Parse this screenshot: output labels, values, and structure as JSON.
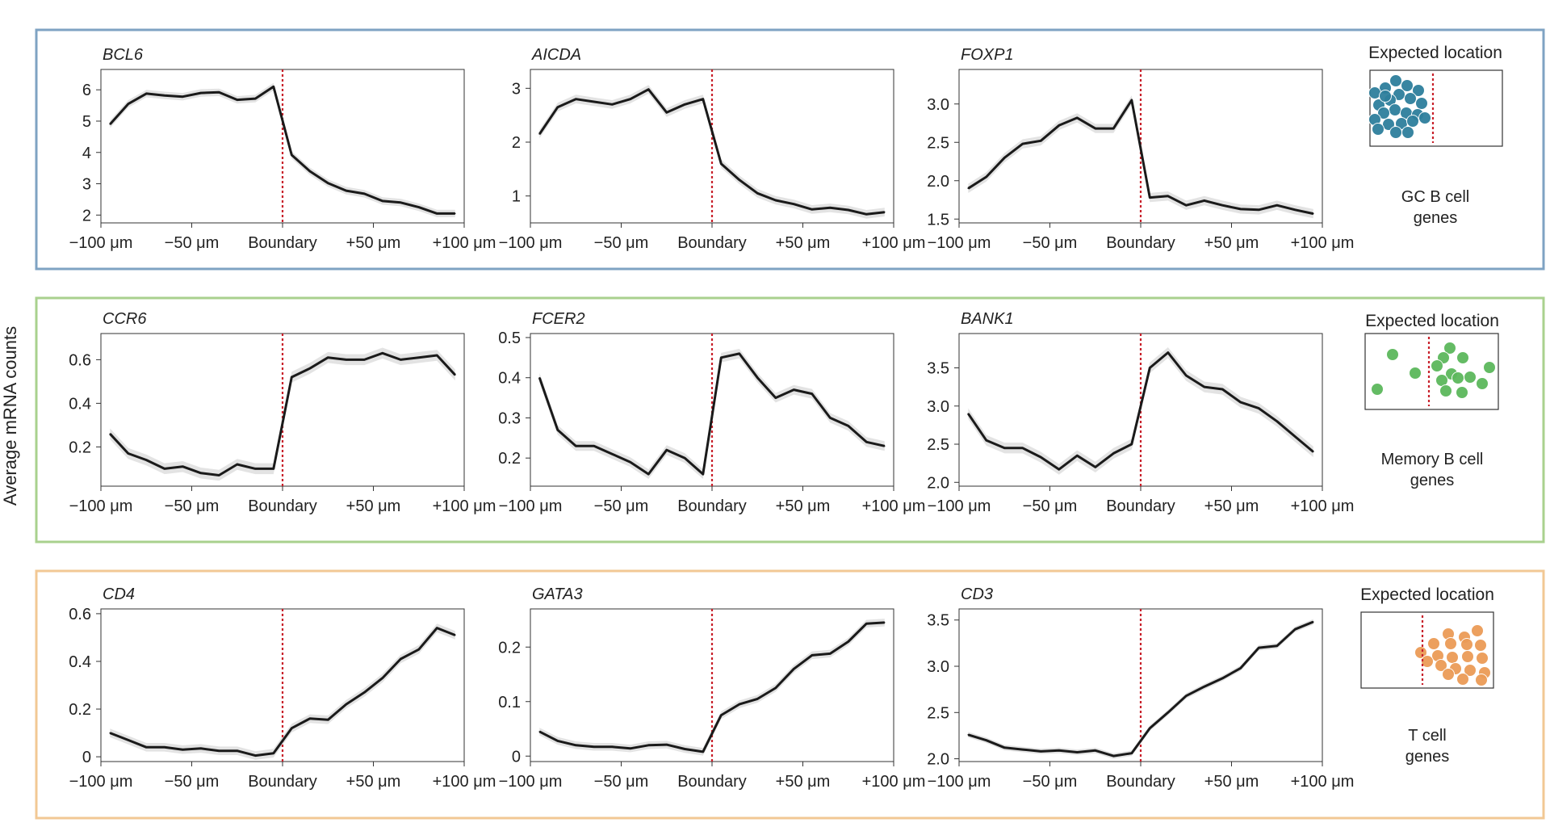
{
  "figure": {
    "ylabel": "Average mRNA counts",
    "x_tick_labels": [
      "−100 μm",
      "−50 μm",
      "Boundary",
      "+50 μm",
      "+100 μm"
    ],
    "legend_title": "Expected location",
    "row_colors": [
      "#7fa3c3",
      "#a9d18e",
      "#f2c894"
    ],
    "dot_colors": [
      "#2e7f9c",
      "#5cb85c",
      "#eb9b57"
    ],
    "rows": [
      {
        "caption_line1": "GC B cell",
        "caption_line2": "genes"
      },
      {
        "caption_line1": "Memory B cell",
        "caption_line2": "genes"
      },
      {
        "caption_line1": "T cell",
        "caption_line2": "genes"
      }
    ]
  },
  "chart_data": [
    {
      "type": "line",
      "title": "BCL6",
      "row": 0,
      "col": 0,
      "x": [
        -95,
        -85,
        -75,
        -65,
        -55,
        -45,
        -35,
        -25,
        -15,
        -5,
        5,
        15,
        25,
        35,
        45,
        55,
        65,
        75,
        85,
        95
      ],
      "values": [
        4.9,
        5.55,
        5.88,
        5.82,
        5.78,
        5.9,
        5.92,
        5.68,
        5.72,
        6.1,
        3.92,
        3.4,
        3.02,
        2.78,
        2.68,
        2.45,
        2.4,
        2.25,
        2.05,
        2.05
      ],
      "band": 0.12,
      "yticks": [
        2,
        3,
        4,
        5,
        6
      ],
      "ytick_labels": [
        "2",
        "3",
        "4",
        "5",
        "6"
      ],
      "ylim": [
        1.75,
        6.65
      ],
      "xlim": [
        -100,
        100
      ],
      "boundary_x": 0
    },
    {
      "type": "line",
      "title": "AICDA",
      "row": 0,
      "col": 1,
      "x": [
        -95,
        -85,
        -75,
        -65,
        -55,
        -45,
        -35,
        -25,
        -15,
        -5,
        5,
        15,
        25,
        35,
        45,
        55,
        65,
        75,
        85,
        95
      ],
      "values": [
        2.15,
        2.65,
        2.8,
        2.75,
        2.7,
        2.8,
        2.98,
        2.55,
        2.7,
        2.8,
        1.6,
        1.3,
        1.05,
        0.92,
        0.85,
        0.75,
        0.78,
        0.74,
        0.66,
        0.7
      ],
      "band": 0.08,
      "yticks": [
        1,
        2,
        3
      ],
      "ytick_labels": [
        "1",
        "2",
        "3"
      ],
      "ylim": [
        0.5,
        3.35
      ],
      "xlim": [
        -100,
        100
      ],
      "boundary_x": 0
    },
    {
      "type": "line",
      "title": "FOXP1",
      "row": 0,
      "col": 2,
      "x": [
        -95,
        -85,
        -75,
        -65,
        -55,
        -45,
        -35,
        -25,
        -15,
        -5,
        5,
        15,
        25,
        35,
        45,
        55,
        65,
        75,
        85,
        95
      ],
      "values": [
        1.9,
        2.05,
        2.3,
        2.48,
        2.52,
        2.72,
        2.82,
        2.68,
        2.68,
        3.05,
        1.78,
        1.8,
        1.68,
        1.74,
        1.68,
        1.63,
        1.62,
        1.68,
        1.62,
        1.57
      ],
      "band": 0.06,
      "yticks": [
        1.5,
        2.0,
        2.5,
        3.0
      ],
      "ytick_labels": [
        "1.5",
        "2.0",
        "2.5",
        "3.0"
      ],
      "ylim": [
        1.45,
        3.45
      ],
      "xlim": [
        -100,
        100
      ],
      "boundary_x": 0
    },
    {
      "type": "line",
      "title": "CCR6",
      "row": 1,
      "col": 0,
      "x": [
        -95,
        -85,
        -75,
        -65,
        -55,
        -45,
        -35,
        -25,
        -15,
        -5,
        5,
        15,
        25,
        35,
        45,
        55,
        65,
        75,
        85,
        95
      ],
      "values": [
        0.26,
        0.17,
        0.14,
        0.1,
        0.11,
        0.08,
        0.07,
        0.12,
        0.1,
        0.1,
        0.52,
        0.56,
        0.61,
        0.6,
        0.6,
        0.63,
        0.6,
        0.61,
        0.62,
        0.53
      ],
      "band": 0.025,
      "yticks": [
        0.2,
        0.4,
        0.6
      ],
      "ytick_labels": [
        "0.2",
        "0.4",
        "0.6"
      ],
      "ylim": [
        0.02,
        0.72
      ],
      "xlim": [
        -100,
        100
      ],
      "boundary_x": 0
    },
    {
      "type": "line",
      "title": "FCER2",
      "row": 1,
      "col": 1,
      "x": [
        -95,
        -85,
        -75,
        -65,
        -55,
        -45,
        -35,
        -25,
        -15,
        -5,
        5,
        15,
        25,
        35,
        45,
        55,
        65,
        75,
        85,
        95
      ],
      "values": [
        0.4,
        0.27,
        0.23,
        0.23,
        0.21,
        0.19,
        0.16,
        0.22,
        0.2,
        0.16,
        0.45,
        0.46,
        0.4,
        0.35,
        0.37,
        0.36,
        0.3,
        0.28,
        0.24,
        0.23
      ],
      "band": 0.012,
      "yticks": [
        0.2,
        0.3,
        0.4,
        0.5
      ],
      "ytick_labels": [
        "0.2",
        "0.3",
        "0.4",
        "0.5"
      ],
      "ylim": [
        0.13,
        0.51
      ],
      "xlim": [
        -100,
        100
      ],
      "boundary_x": 0
    },
    {
      "type": "line",
      "title": "BANK1",
      "row": 1,
      "col": 2,
      "x": [
        -95,
        -85,
        -75,
        -65,
        -55,
        -45,
        -35,
        -25,
        -15,
        -5,
        5,
        15,
        25,
        35,
        45,
        55,
        65,
        75,
        85,
        95
      ],
      "values": [
        2.9,
        2.55,
        2.45,
        2.45,
        2.33,
        2.17,
        2.35,
        2.2,
        2.38,
        2.5,
        3.5,
        3.7,
        3.4,
        3.25,
        3.22,
        3.05,
        2.97,
        2.8,
        2.6,
        2.4
      ],
      "band": 0.07,
      "yticks": [
        2.0,
        2.5,
        3.0,
        3.5
      ],
      "ytick_labels": [
        "2.0",
        "2.5",
        "3.0",
        "3.5"
      ],
      "ylim": [
        1.95,
        3.95
      ],
      "xlim": [
        -100,
        100
      ],
      "boundary_x": 0
    },
    {
      "type": "line",
      "title": "CD4",
      "row": 2,
      "col": 0,
      "x": [
        -95,
        -85,
        -75,
        -65,
        -55,
        -45,
        -35,
        -25,
        -15,
        -5,
        5,
        15,
        25,
        35,
        45,
        55,
        65,
        75,
        85,
        95
      ],
      "values": [
        0.1,
        0.07,
        0.04,
        0.04,
        0.03,
        0.035,
        0.025,
        0.025,
        0.005,
        0.015,
        0.12,
        0.16,
        0.155,
        0.22,
        0.27,
        0.33,
        0.41,
        0.45,
        0.54,
        0.51
      ],
      "band": 0.018,
      "yticks": [
        0,
        0.2,
        0.4,
        0.6
      ],
      "ytick_labels": [
        "0",
        "0.2",
        "0.4",
        "0.6"
      ],
      "ylim": [
        -0.02,
        0.62
      ],
      "xlim": [
        -100,
        100
      ],
      "boundary_x": 0
    },
    {
      "type": "line",
      "title": "GATA3",
      "row": 2,
      "col": 1,
      "x": [
        -95,
        -85,
        -75,
        -65,
        -55,
        -45,
        -35,
        -25,
        -15,
        -5,
        5,
        15,
        25,
        35,
        45,
        55,
        65,
        75,
        85,
        95
      ],
      "values": [
        0.045,
        0.028,
        0.02,
        0.017,
        0.017,
        0.014,
        0.02,
        0.021,
        0.013,
        0.008,
        0.075,
        0.095,
        0.105,
        0.125,
        0.16,
        0.185,
        0.188,
        0.21,
        0.243,
        0.245
      ],
      "band": 0.007,
      "yticks": [
        0,
        0.1,
        0.2
      ],
      "ytick_labels": [
        "0",
        "0.1",
        "0.2"
      ],
      "ylim": [
        -0.01,
        0.27
      ],
      "xlim": [
        -100,
        100
      ],
      "boundary_x": 0
    },
    {
      "type": "line",
      "title": "CD3",
      "row": 2,
      "col": 2,
      "x": [
        -95,
        -85,
        -75,
        -65,
        -55,
        -45,
        -35,
        -25,
        -15,
        -5,
        5,
        15,
        25,
        35,
        45,
        55,
        65,
        75,
        85,
        95
      ],
      "values": [
        2.26,
        2.2,
        2.12,
        2.1,
        2.08,
        2.09,
        2.07,
        2.09,
        2.03,
        2.06,
        2.33,
        2.5,
        2.68,
        2.78,
        2.87,
        2.98,
        3.2,
        3.22,
        3.4,
        3.48
      ],
      "band": 0.03,
      "yticks": [
        2.0,
        2.5,
        3.0,
        3.5
      ],
      "ytick_labels": [
        "2.0",
        "2.5",
        "3.0",
        "3.5"
      ],
      "ylim": [
        1.97,
        3.62
      ],
      "xlim": [
        -100,
        100
      ],
      "boundary_x": 0
    }
  ]
}
